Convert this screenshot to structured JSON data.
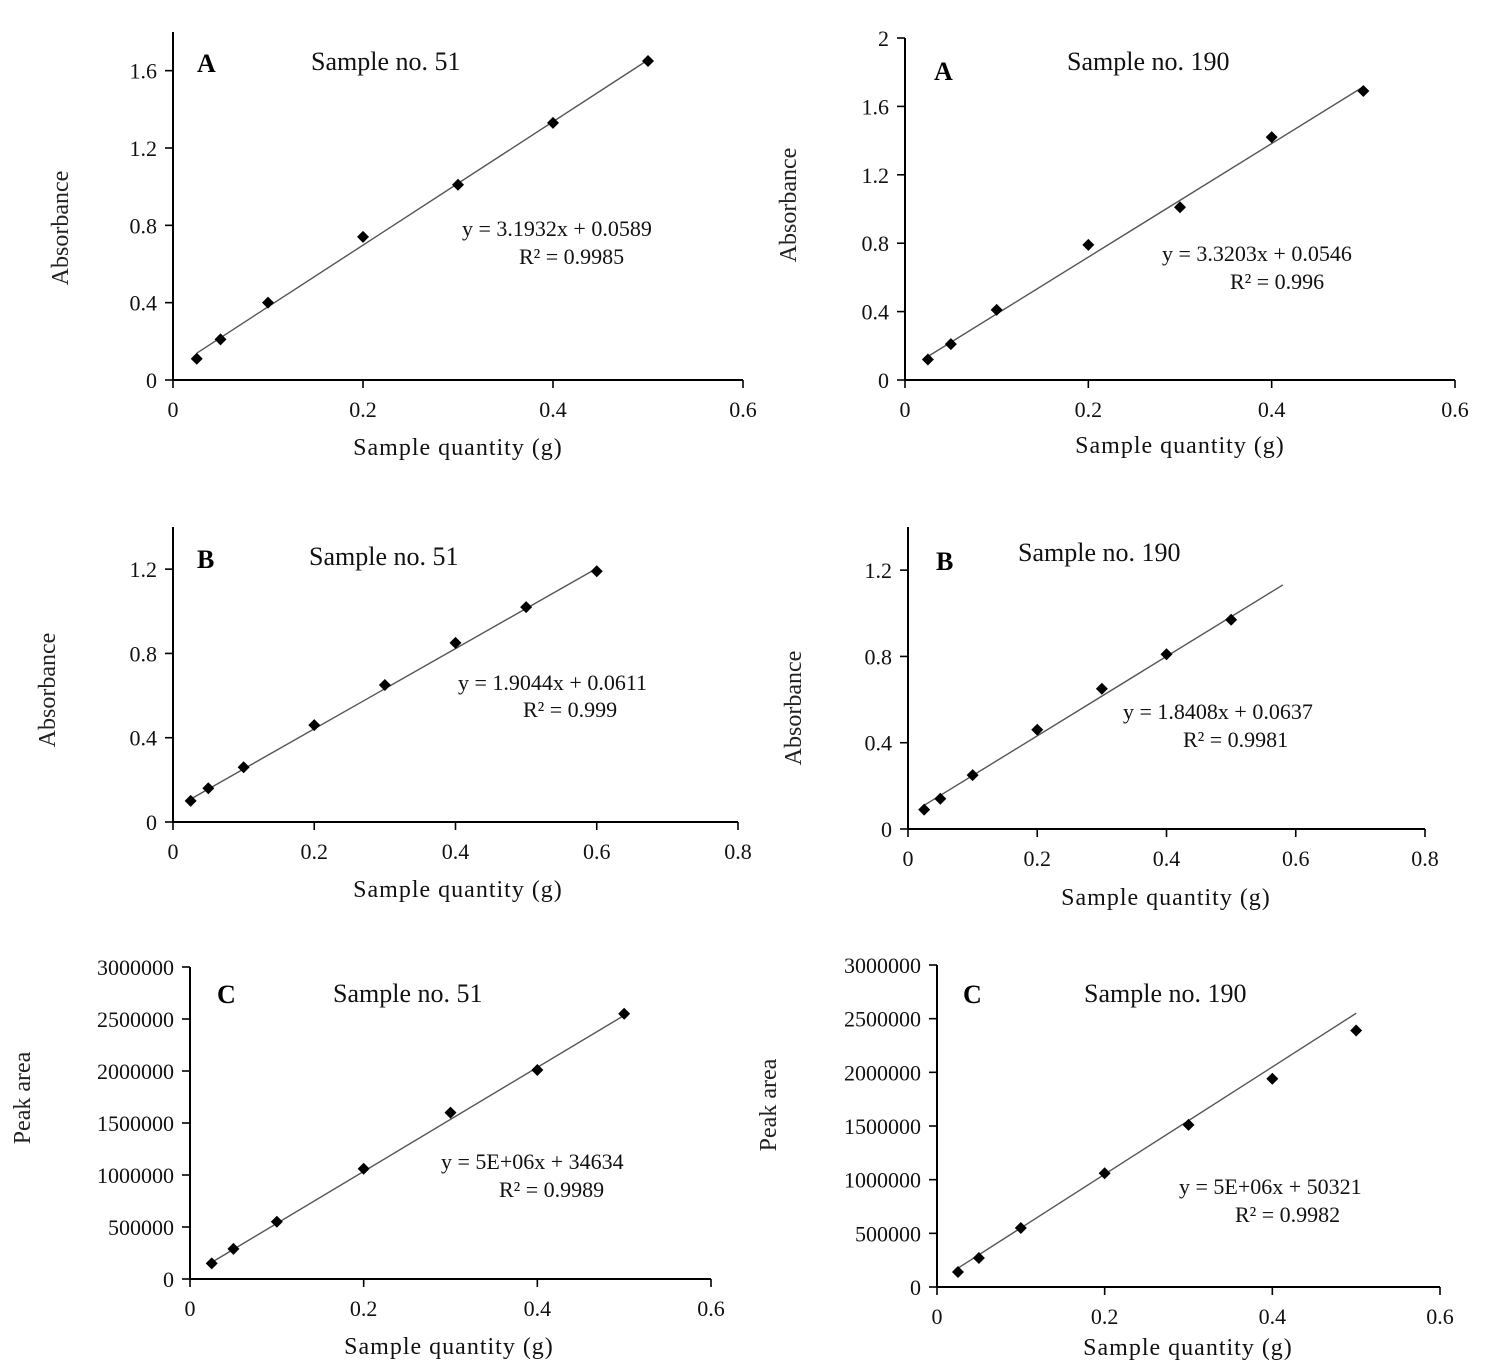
{
  "chart_data": [
    {
      "type": "scatter",
      "panel_label": "A",
      "title": "Sample no. 51",
      "xlabel": "Sample quantity (g)",
      "ylabel": "Absorbance",
      "xlim": [
        0,
        0.6
      ],
      "ylim": [
        0,
        1.8
      ],
      "xticks": [
        0,
        0.2,
        0.4,
        0.6
      ],
      "xtick_labels": [
        "0",
        "0.2",
        "0.4",
        "0.6"
      ],
      "yticks": [
        0,
        0.4,
        0.8,
        1.2,
        1.6
      ],
      "ytick_labels": [
        "0",
        "0.4",
        "0.8",
        "1.2",
        "1.6"
      ],
      "x": [
        0.025,
        0.05,
        0.1,
        0.2,
        0.3,
        0.4,
        0.5
      ],
      "y": [
        0.11,
        0.21,
        0.4,
        0.74,
        1.01,
        1.33,
        1.65
      ],
      "trendline": {
        "slope": 3.1932,
        "intercept": 0.0589,
        "x_range": [
          0.025,
          0.5
        ]
      },
      "equation": "y = 3.1932x   + 0.0589",
      "r_squared": "R² = 0.9985",
      "grid": false,
      "legend": "none"
    },
    {
      "type": "scatter",
      "panel_label": "A",
      "title": "Sample no. 190",
      "xlabel": "Sample quantity (g)",
      "ylabel": "Absorbance",
      "xlim": [
        0,
        0.6
      ],
      "ylim": [
        0,
        2
      ],
      "xticks": [
        0,
        0.2,
        0.4,
        0.6
      ],
      "xtick_labels": [
        "0",
        "0.2",
        "0.4",
        "0.6"
      ],
      "yticks": [
        0,
        0.4,
        0.8,
        1.2,
        1.6,
        2
      ],
      "ytick_labels": [
        "0",
        "0.4",
        "0.8",
        "1.2",
        "1.6",
        "2"
      ],
      "x": [
        0.025,
        0.05,
        0.1,
        0.2,
        0.3,
        0.4,
        0.5
      ],
      "y": [
        0.12,
        0.21,
        0.41,
        0.79,
        1.01,
        1.42,
        1.69
      ],
      "trendline": {
        "slope": 3.3203,
        "intercept": 0.0546,
        "x_range": [
          0.025,
          0.5
        ]
      },
      "equation": "y = 3.3203x   + 0.0546",
      "r_squared": "R² = 0.996",
      "grid": false,
      "legend": "none"
    },
    {
      "type": "scatter",
      "panel_label": "B",
      "title": "Sample no. 51",
      "xlabel": "Sample quantity (g)",
      "ylabel": "Absorbance",
      "xlim": [
        0,
        0.8
      ],
      "ylim": [
        0,
        1.4
      ],
      "xticks": [
        0,
        0.2,
        0.4,
        0.6,
        0.8
      ],
      "xtick_labels": [
        "0",
        "0.2",
        "0.4",
        "0.6",
        "0.8"
      ],
      "yticks": [
        0,
        0.4,
        0.8,
        1.2
      ],
      "ytick_labels": [
        "0",
        "0.4",
        "0.8",
        "1.2"
      ],
      "x": [
        0.025,
        0.05,
        0.1,
        0.2,
        0.3,
        0.4,
        0.5,
        0.6
      ],
      "y": [
        0.1,
        0.16,
        0.26,
        0.46,
        0.65,
        0.85,
        1.02,
        1.19
      ],
      "trendline": {
        "slope": 1.9044,
        "intercept": 0.0611,
        "x_range": [
          0.025,
          0.6
        ]
      },
      "equation": "y = 1.9044x   + 0.0611",
      "r_squared": "R² = 0.999",
      "grid": false,
      "legend": "none"
    },
    {
      "type": "scatter",
      "panel_label": "B",
      "title": "Sample no. 190",
      "xlabel": "Sample quantity (g)",
      "ylabel": "Absorbance",
      "xlim": [
        0,
        0.8
      ],
      "ylim": [
        0,
        1.4
      ],
      "xticks": [
        0,
        0.2,
        0.4,
        0.6,
        0.8
      ],
      "xtick_labels": [
        "0",
        "0.2",
        "0.4",
        "0.6",
        "0.8"
      ],
      "yticks": [
        0,
        0.4,
        0.8,
        1.2
      ],
      "ytick_labels": [
        "0",
        "0.4",
        "0.8",
        "1.2"
      ],
      "x": [
        0.025,
        0.05,
        0.1,
        0.2,
        0.3,
        0.4,
        0.5
      ],
      "y": [
        0.09,
        0.14,
        0.25,
        0.46,
        0.65,
        0.81,
        0.97
      ],
      "trendline": {
        "slope": 1.8408,
        "intercept": 0.0637,
        "x_range": [
          0.025,
          0.58
        ]
      },
      "equation": "y = 1.8408x   + 0.0637",
      "r_squared": "R² = 0.9981",
      "grid": false,
      "legend": "none"
    },
    {
      "type": "scatter",
      "panel_label": "C",
      "title": "Sample  no. 51",
      "xlabel": "Sample quantity (g)",
      "ylabel": "Peak area",
      "xlim": [
        0,
        0.6
      ],
      "ylim": [
        0,
        3000000
      ],
      "xticks": [
        0,
        0.2,
        0.4,
        0.6
      ],
      "xtick_labels": [
        "0",
        "0.2",
        "0.4",
        "0.6"
      ],
      "yticks": [
        0,
        500000,
        1000000,
        1500000,
        2000000,
        2500000,
        3000000
      ],
      "ytick_labels": [
        "0",
        "500000",
        "1000000",
        "1500000",
        "2000000",
        "2500000",
        "3000000"
      ],
      "x": [
        0.025,
        0.05,
        0.1,
        0.2,
        0.3,
        0.4,
        0.5
      ],
      "y": [
        150000,
        290000,
        550000,
        1060000,
        1600000,
        2010000,
        2550000
      ],
      "trendline": {
        "slope": 5000000,
        "intercept": 34634,
        "x_range": [
          0.025,
          0.5
        ]
      },
      "equation": "y = 5E+06x   + 34634",
      "r_squared": "R² = 0.9989",
      "grid": false,
      "legend": "none"
    },
    {
      "type": "scatter",
      "panel_label": "C",
      "title": "Sample no.  190",
      "xlabel": "Sample quantity (g)",
      "ylabel": "Peak area",
      "xlim": [
        0,
        0.6
      ],
      "ylim": [
        0,
        3000000
      ],
      "xticks": [
        0,
        0.2,
        0.4,
        0.6
      ],
      "xtick_labels": [
        "0",
        "0.2",
        "0.4",
        "0.6"
      ],
      "yticks": [
        0,
        500000,
        1000000,
        1500000,
        2000000,
        2500000,
        3000000
      ],
      "ytick_labels": [
        "0",
        "500000",
        "1000000",
        "1500000",
        "2000000",
        "2500000",
        "3000000"
      ],
      "x": [
        0.025,
        0.05,
        0.1,
        0.2,
        0.3,
        0.4,
        0.5
      ],
      "y": [
        140000,
        270000,
        550000,
        1060000,
        1510000,
        1940000,
        2390000
      ],
      "trendline": {
        "slope": 5000000,
        "intercept": 50321,
        "x_range": [
          0.025,
          0.5
        ]
      },
      "equation": "y = 5E+06x   + 50321",
      "r_squared": "R² = 0.9982",
      "grid": false,
      "legend": "none"
    }
  ]
}
